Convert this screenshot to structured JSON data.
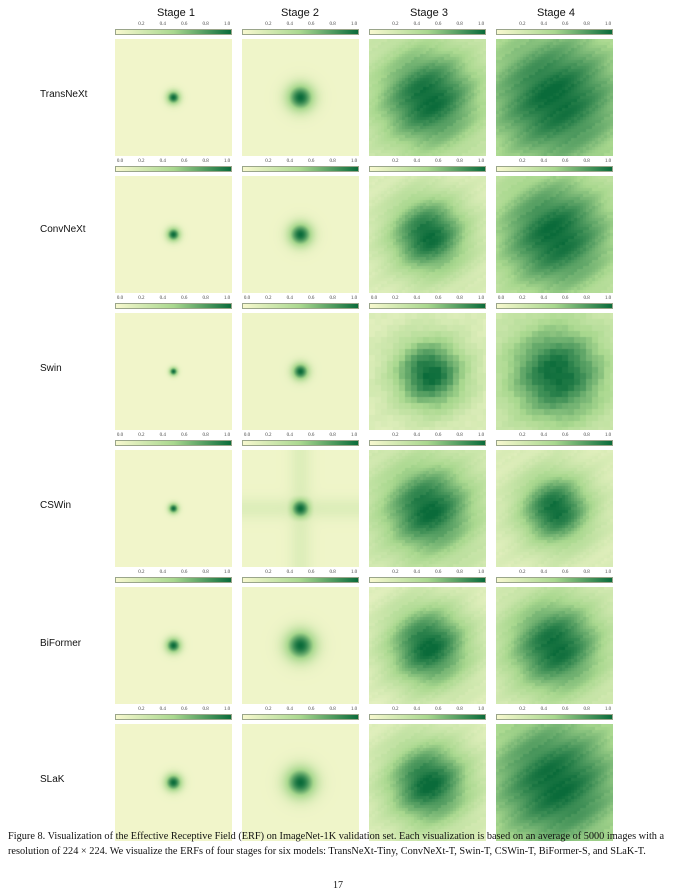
{
  "figure": {
    "stages": [
      "Stage 1",
      "Stage 2",
      "Stage 3",
      "Stage 4"
    ],
    "models": [
      "TransNeXt",
      "ConvNeXt",
      "Swin",
      "CSWin",
      "BiFormer",
      "SLaK"
    ],
    "colorbar": {
      "min": 0.0,
      "max": 1.0,
      "ticks_full": [
        "0.0",
        "0.2",
        "0.4",
        "0.6",
        "0.8",
        "1.0"
      ],
      "ticks_short": [
        "0.2",
        "0.4",
        "0.6",
        "0.8",
        "1.0"
      ],
      "color_low": "#f7f8cf",
      "color_mid": "#a9d88f",
      "color_high": "#0a6b3a"
    },
    "show_zero_tick": [
      [
        false,
        false,
        false,
        false
      ],
      [
        true,
        false,
        false,
        false
      ],
      [
        true,
        true,
        true,
        true
      ],
      [
        true,
        true,
        false,
        false
      ],
      [
        false,
        false,
        false,
        false
      ],
      [
        false,
        false,
        false,
        false
      ]
    ],
    "erf_spread": [
      [
        0.04,
        0.08,
        0.32,
        0.42
      ],
      [
        0.04,
        0.07,
        0.24,
        0.36
      ],
      [
        0.025,
        0.05,
        0.22,
        0.3
      ],
      [
        0.03,
        0.06,
        0.28,
        0.22
      ],
      [
        0.045,
        0.09,
        0.26,
        0.3
      ],
      [
        0.05,
        0.09,
        0.26,
        0.4
      ]
    ],
    "erf_background": [
      [
        0.04,
        0.05,
        0.2,
        0.28
      ],
      [
        0.04,
        0.05,
        0.16,
        0.24
      ],
      [
        0.04,
        0.06,
        0.16,
        0.22
      ],
      [
        0.04,
        0.05,
        0.2,
        0.16
      ],
      [
        0.04,
        0.05,
        0.12,
        0.16
      ],
      [
        0.04,
        0.05,
        0.14,
        0.3
      ]
    ]
  },
  "caption": "Figure 8. Visualization of the Effective Receptive Field (ERF) on ImageNet-1K validation set. Each visualization is based on an average of 5000 images with a resolution of 224 × 224. We visualize the ERFs of four stages for six models: TransNeXt-Tiny, ConvNeXt-T, Swin-T, CSWin-T, BiFormer-S, and SLaK-T.",
  "page_number": "17"
}
